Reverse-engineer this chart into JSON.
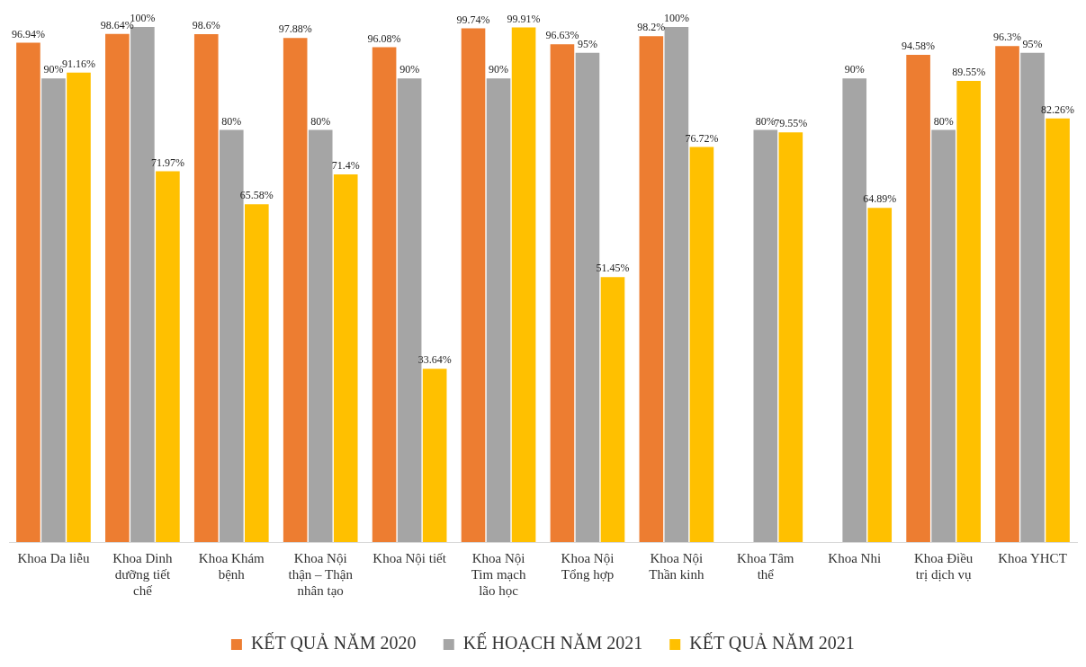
{
  "chart_data": {
    "type": "bar",
    "categories": [
      "Khoa Da liễu",
      "Khoa Dinh dưỡng tiết chế",
      "Khoa Khám bệnh",
      "Khoa Nội thận – Thận nhân tạo",
      "Khoa Nội tiết",
      "Khoa Nội Tim mạch lão học",
      "Khoa Nội Tổng hợp",
      "Khoa Nội Thần kinh",
      "Khoa Tâm thể",
      "Khoa Nhi",
      "Khoa Điều trị dịch vụ",
      "Khoa YHCT"
    ],
    "series": [
      {
        "name": "KẾT QUẢ NĂM 2020",
        "color": "#ed7d31",
        "values": [
          96.94,
          98.64,
          98.6,
          97.88,
          96.08,
          99.74,
          96.63,
          98.2,
          null,
          null,
          94.58,
          96.3
        ],
        "value_labels": [
          "96.94%",
          "98.64%",
          "98.6%",
          "97.88%",
          "96.08%",
          "99.74%",
          "96.63%",
          "98.2%",
          null,
          null,
          "94.58%",
          "96.3%"
        ]
      },
      {
        "name": "KẾ HOẠCH NĂM 2021",
        "color": "#a5a5a5",
        "values": [
          90,
          100,
          80,
          80,
          90,
          90,
          95,
          100,
          80,
          90,
          80,
          95
        ],
        "value_labels": [
          "90%",
          "100%",
          "80%",
          "80%",
          "90%",
          "90%",
          "95%",
          "100%",
          "80%",
          "90%",
          "80%",
          "95%"
        ]
      },
      {
        "name": "KẾT QUẢ NĂM 2021",
        "color": "#ffc000",
        "values": [
          91.16,
          71.97,
          65.58,
          71.4,
          33.64,
          99.91,
          51.45,
          76.72,
          79.55,
          64.89,
          89.55,
          82.26
        ],
        "value_labels": [
          "91.16%",
          "71.97%",
          "65.58%",
          "71.4%",
          "33.64%",
          "99.91%",
          "51.45%",
          "76.72%",
          "79.55%",
          "64.89%",
          "89.55%",
          "82.26%"
        ]
      }
    ],
    "legend": "bottom",
    "grid": false
  }
}
